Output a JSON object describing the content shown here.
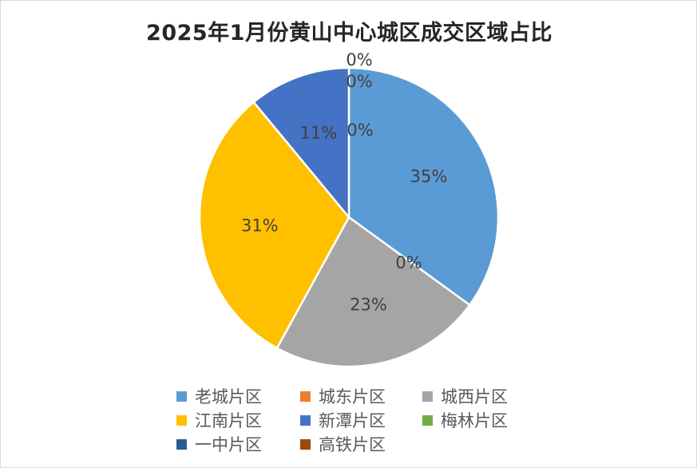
{
  "chart_data": {
    "type": "pie",
    "title": "2025年1月份黄山中心城区成交区域占比",
    "slices": [
      {
        "name": "老城片区",
        "value": 35,
        "label": "35%",
        "color": "#5B9BD5"
      },
      {
        "name": "城东片区",
        "value": 0,
        "label": "0%",
        "color": "#ED7D31"
      },
      {
        "name": "城西片区",
        "value": 23,
        "label": "23%",
        "color": "#A5A5A5"
      },
      {
        "name": "江南片区",
        "value": 31,
        "label": "31%",
        "color": "#FFC000"
      },
      {
        "name": "新潭片区",
        "value": 11,
        "label": "11%",
        "color": "#4472C4"
      },
      {
        "name": "梅林片区",
        "value": 0,
        "label": "0%",
        "color": "#70AD47"
      },
      {
        "name": "一中片区",
        "value": 0,
        "label": "0%",
        "color": "#255E91"
      },
      {
        "name": "高铁片区",
        "value": 0,
        "label": "0%",
        "color": "#9E480E"
      }
    ],
    "legend_position": "bottom"
  }
}
